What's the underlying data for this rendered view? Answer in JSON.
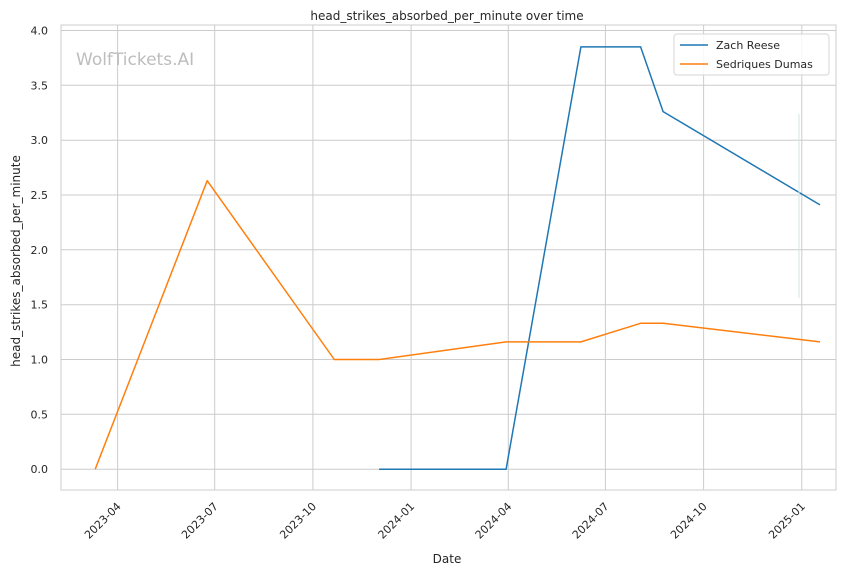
{
  "chart_data": {
    "type": "line",
    "title": "head_strikes_absorbed_per_minute over time",
    "xlabel": "Date",
    "ylabel": "head_strikes_absorbed_per_minute",
    "watermark": "WolfTickets.AI",
    "x_tick_labels": [
      "2023-04",
      "2023-07",
      "2023-10",
      "2024-01",
      "2024-04",
      "2024-07",
      "2024-10",
      "2025-01"
    ],
    "x_ticks": [
      "2023-04-01",
      "2023-07-01",
      "2023-10-01",
      "2024-01-01",
      "2024-04-01",
      "2024-07-01",
      "2024-10-01",
      "2025-01-01"
    ],
    "xlim": [
      "2023-02-07",
      "2025-02-02"
    ],
    "y_ticks": [
      0.0,
      0.5,
      1.0,
      1.5,
      2.0,
      2.5,
      3.0,
      3.5,
      4.0
    ],
    "y_tick_labels": [
      "0.0",
      "0.5",
      "1.0",
      "1.5",
      "2.0",
      "2.5",
      "3.0",
      "3.5",
      "4.0"
    ],
    "ylim": [
      -0.19,
      4.05
    ],
    "grid": true,
    "legend_position": "top-right",
    "series": [
      {
        "name": "Zach Reese",
        "color": "#1f77b4",
        "points": [
          {
            "x": "2023-12-02",
            "y": 0.0
          },
          {
            "x": "2024-03-30",
            "y": 0.0
          },
          {
            "x": "2024-06-08",
            "y": 3.85
          },
          {
            "x": "2024-08-03",
            "y": 3.85
          },
          {
            "x": "2024-08-24",
            "y": 3.26
          },
          {
            "x": "2025-01-18",
            "y": 2.41
          }
        ]
      },
      {
        "name": "Sedriques Dumas",
        "color": "#ff7f0e",
        "points": [
          {
            "x": "2023-03-11",
            "y": 0.0
          },
          {
            "x": "2023-06-24",
            "y": 2.63
          },
          {
            "x": "2023-10-21",
            "y": 1.0
          },
          {
            "x": "2023-12-02",
            "y": 1.0
          },
          {
            "x": "2024-03-30",
            "y": 1.16
          },
          {
            "x": "2024-06-08",
            "y": 1.16
          },
          {
            "x": "2024-08-03",
            "y": 1.33
          },
          {
            "x": "2024-08-24",
            "y": 1.33
          },
          {
            "x": "2025-01-18",
            "y": 1.16
          }
        ]
      }
    ]
  }
}
